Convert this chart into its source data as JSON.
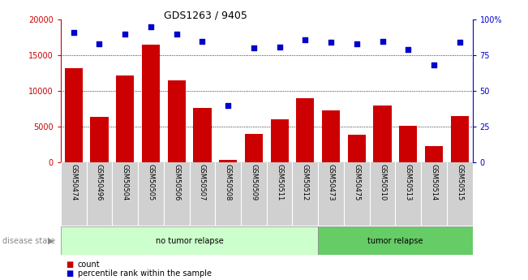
{
  "title": "GDS1263 / 9405",
  "samples": [
    "GSM50474",
    "GSM50496",
    "GSM50504",
    "GSM50505",
    "GSM50506",
    "GSM50507",
    "GSM50508",
    "GSM50509",
    "GSM50511",
    "GSM50512",
    "GSM50473",
    "GSM50475",
    "GSM50510",
    "GSM50513",
    "GSM50514",
    "GSM50515"
  ],
  "counts": [
    13200,
    6400,
    12200,
    16500,
    11500,
    7600,
    350,
    4000,
    6000,
    9000,
    7300,
    3900,
    8000,
    5100,
    2300,
    6500
  ],
  "percentiles": [
    91,
    83,
    90,
    95,
    90,
    85,
    40,
    80,
    81,
    86,
    84,
    83,
    85,
    79,
    68,
    84
  ],
  "groups": [
    {
      "label": "no tumor relapse",
      "start": 0,
      "end": 10,
      "color": "#ccffcc"
    },
    {
      "label": "tumor relapse",
      "start": 10,
      "end": 16,
      "color": "#66cc66"
    }
  ],
  "bar_color": "#cc0000",
  "dot_color": "#0000cc",
  "left_ylim": [
    0,
    20000
  ],
  "right_ylim": [
    0,
    100
  ],
  "left_yticks": [
    0,
    5000,
    10000,
    15000,
    20000
  ],
  "right_yticks": [
    0,
    25,
    50,
    75,
    100
  ],
  "left_yticklabels": [
    "0",
    "5000",
    "10000",
    "15000",
    "20000"
  ],
  "right_yticklabels": [
    "0",
    "25",
    "50",
    "75",
    "100%"
  ],
  "grid_values": [
    5000,
    10000,
    15000
  ],
  "legend_count_label": "count",
  "legend_percentile_label": "percentile rank within the sample",
  "disease_state_label": "disease state",
  "tick_color_left": "#cc0000",
  "tick_color_right": "#0000cc",
  "xticklabel_bg": "#d0d0d0",
  "group_separator": 10
}
